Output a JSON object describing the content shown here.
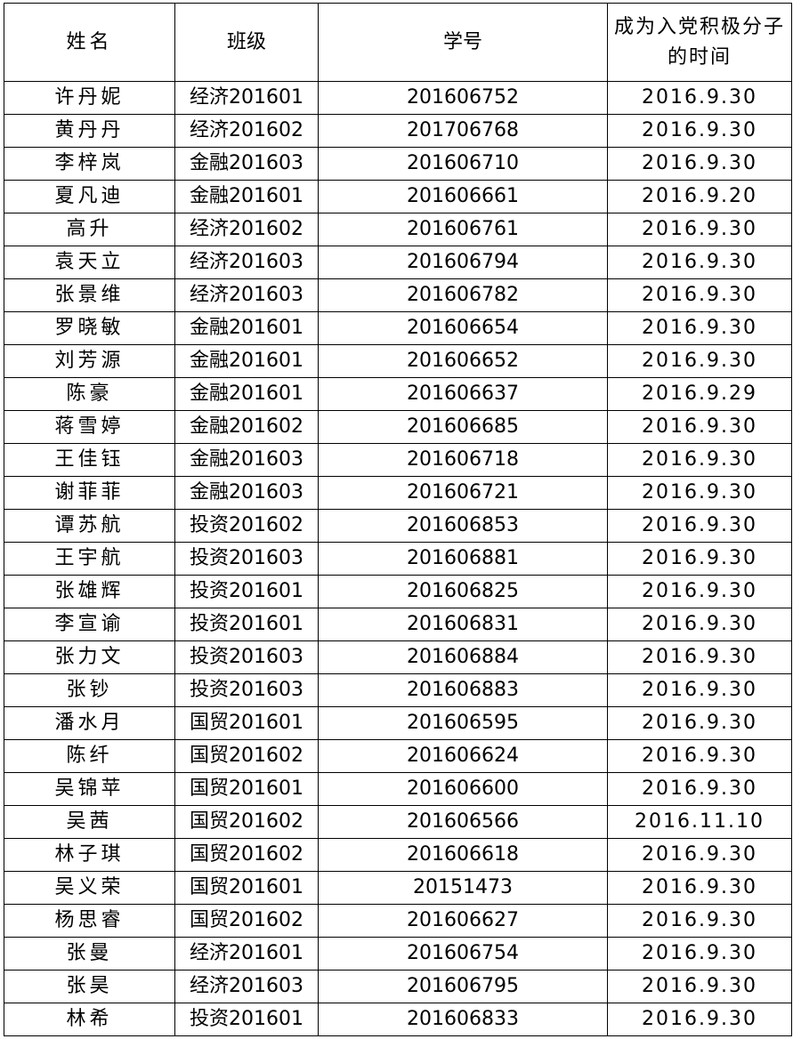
{
  "table": {
    "headers": [
      "姓名",
      "班级",
      "学号",
      "成为入党积极分子的时间"
    ],
    "rows": [
      [
        "许丹妮",
        "经济201601",
        "201606752",
        "2016.9.30"
      ],
      [
        "黄丹丹",
        "经济201602",
        "201706768",
        "2016.9.30"
      ],
      [
        "李梓岚",
        "金融201603",
        "201606710",
        "2016.9.30"
      ],
      [
        "夏凡迪",
        "金融201601",
        "201606661",
        "2016.9.20"
      ],
      [
        "高升",
        "经济201602",
        "201606761",
        "2016.9.30"
      ],
      [
        "袁天立",
        "经济201603",
        "201606794",
        "2016.9.30"
      ],
      [
        "张景维",
        "经济201603",
        "201606782",
        "2016.9.30"
      ],
      [
        "罗晓敏",
        "金融201601",
        "201606654",
        "2016.9.30"
      ],
      [
        "刘芳源",
        "金融201601",
        "201606652",
        "2016.9.30"
      ],
      [
        "陈豪",
        "金融201601",
        "201606637",
        "2016.9.29"
      ],
      [
        "蒋雪婷",
        "金融201602",
        "201606685",
        "2016.9.30"
      ],
      [
        "王佳钰",
        "金融201603",
        "201606718",
        "2016.9.30"
      ],
      [
        "谢菲菲",
        "金融201603",
        "201606721",
        "2016.9.30"
      ],
      [
        "谭苏航",
        "投资201602",
        "201606853",
        "2016.9.30"
      ],
      [
        "王宇航",
        "投资201603",
        "201606881",
        "2016.9.30"
      ],
      [
        "张雄辉",
        "投资201601",
        "201606825",
        "2016.9.30"
      ],
      [
        "李宣谕",
        "投资201601",
        "201606831",
        "2016.9.30"
      ],
      [
        "张力文",
        "投资201603",
        "201606884",
        "2016.9.30"
      ],
      [
        "张钞",
        "投资201603",
        "201606883",
        "2016.9.30"
      ],
      [
        "潘水月",
        "国贸201601",
        "201606595",
        "2016.9.30"
      ],
      [
        "陈纤",
        "国贸201602",
        "201606624",
        "2016.9.30"
      ],
      [
        "吴锦苹",
        "国贸201601",
        "201606600",
        "2016.9.30"
      ],
      [
        "吴茜",
        "国贸201602",
        "201606566",
        "2016.11.10"
      ],
      [
        "林子琪",
        "国贸201602",
        "201606618",
        "2016.9.30"
      ],
      [
        "吴义荣",
        "国贸201601",
        "20151473",
        "2016.9.30"
      ],
      [
        "杨思睿",
        "国贸201602",
        "201606627",
        "2016.9.30"
      ],
      [
        "张曼",
        "经济201601",
        "201606754",
        "2016.9.30"
      ],
      [
        "张昊",
        "经济201603",
        "201606795",
        "2016.9.30"
      ],
      [
        "林希",
        "投资201601",
        "201606833",
        "2016.9.30"
      ]
    ]
  }
}
